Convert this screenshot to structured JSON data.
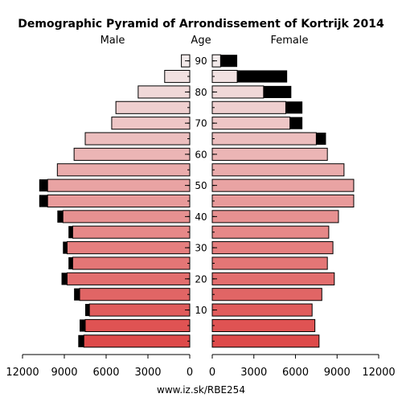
{
  "chart_data": {
    "type": "bar",
    "title": "Demographic Pyramid of Arrondissement of Kortrijk 2014",
    "left_label": "Male",
    "center_label": "Age",
    "right_label": "Female",
    "footer": "www.iz.sk/RBE254",
    "xlim": [
      0,
      12000
    ],
    "x_ticks": [
      0,
      3000,
      6000,
      9000,
      12000
    ],
    "x_tick_labels_left": [
      "0",
      "3000",
      "6000",
      "9000",
      "12000"
    ],
    "x_tick_labels_right": [
      "0",
      "3000",
      "6000",
      "9000",
      "12000"
    ],
    "age_ticks": [
      {
        "group_index": 2,
        "label": "10"
      },
      {
        "group_index": 4,
        "label": "20"
      },
      {
        "group_index": 6,
        "label": "30"
      },
      {
        "group_index": 8,
        "label": "40"
      },
      {
        "group_index": 10,
        "label": "50"
      },
      {
        "group_index": 12,
        "label": "60"
      },
      {
        "group_index": 14,
        "label": "70"
      },
      {
        "group_index": 16,
        "label": "80"
      },
      {
        "group_index": 18,
        "label": "90"
      }
    ],
    "age_groups": [
      "0-4",
      "5-9",
      "10-14",
      "15-19",
      "20-24",
      "25-29",
      "30-34",
      "35-39",
      "40-44",
      "45-49",
      "50-54",
      "55-59",
      "60-64",
      "65-69",
      "70-74",
      "75-79",
      "80-84",
      "85-89",
      "90+"
    ],
    "series": [
      {
        "name": "Male",
        "values": [
          7600,
          7500,
          7200,
          7900,
          8800,
          8400,
          8800,
          8400,
          9100,
          10200,
          10200,
          9500,
          8300,
          7500,
          5600,
          5300,
          3700,
          1800,
          600
        ],
        "excess": [
          400,
          400,
          300,
          400,
          400,
          300,
          300,
          300,
          400,
          600,
          600,
          0,
          0,
          0,
          0,
          0,
          0,
          0,
          0
        ]
      },
      {
        "name": "Female",
        "values": [
          7700,
          7400,
          7200,
          7900,
          8800,
          8300,
          8700,
          8400,
          9100,
          10200,
          10200,
          9500,
          8300,
          7500,
          5600,
          5300,
          3700,
          1800,
          600
        ],
        "excess": [
          0,
          0,
          0,
          0,
          0,
          0,
          0,
          0,
          0,
          0,
          0,
          0,
          0,
          700,
          900,
          1200,
          2000,
          3600,
          1200
        ]
      }
    ],
    "colors": {
      "excess": "#000000",
      "bar_stroke": "#000000",
      "gradient_bottom": "#de4a4a",
      "gradient_top": "#f2eaea"
    }
  }
}
